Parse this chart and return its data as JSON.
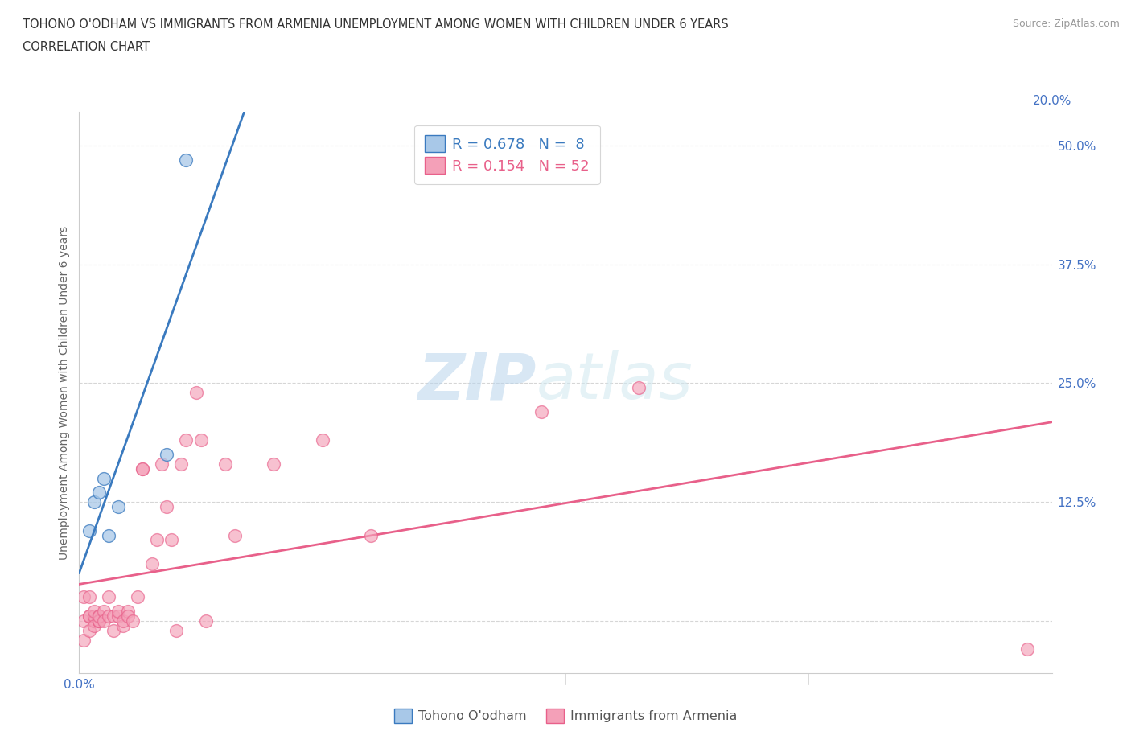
{
  "title_line1": "TOHONO O'ODHAM VS IMMIGRANTS FROM ARMENIA UNEMPLOYMENT AMONG WOMEN WITH CHILDREN UNDER 6 YEARS",
  "title_line2": "CORRELATION CHART",
  "source_text": "Source: ZipAtlas.com",
  "ylabel": "Unemployment Among Women with Children Under 6 years",
  "watermark": "ZIPatlas",
  "blue_R": 0.678,
  "blue_N": 8,
  "pink_R": 0.154,
  "pink_N": 52,
  "blue_color": "#a8c8e8",
  "pink_color": "#f4a0b8",
  "blue_line_color": "#3a7abf",
  "pink_line_color": "#e8608a",
  "xlim": [
    0.0,
    0.2
  ],
  "ylim": [
    -0.055,
    0.535
  ],
  "x_ticks": [
    0.0,
    0.05,
    0.1,
    0.15,
    0.2
  ],
  "y_ticks": [
    0.0,
    0.125,
    0.25,
    0.375,
    0.5
  ],
  "blue_x": [
    0.002,
    0.003,
    0.004,
    0.005,
    0.006,
    0.008,
    0.018,
    0.022
  ],
  "blue_y": [
    0.095,
    0.125,
    0.135,
    0.15,
    0.09,
    0.12,
    0.175,
    0.485
  ],
  "pink_x": [
    0.001,
    0.001,
    0.001,
    0.002,
    0.002,
    0.002,
    0.002,
    0.003,
    0.003,
    0.003,
    0.003,
    0.003,
    0.004,
    0.004,
    0.004,
    0.004,
    0.004,
    0.005,
    0.005,
    0.006,
    0.006,
    0.007,
    0.007,
    0.008,
    0.008,
    0.009,
    0.009,
    0.01,
    0.01,
    0.011,
    0.012,
    0.013,
    0.013,
    0.015,
    0.016,
    0.017,
    0.018,
    0.019,
    0.02,
    0.021,
    0.022,
    0.024,
    0.025,
    0.026,
    0.03,
    0.032,
    0.04,
    0.05,
    0.06,
    0.095,
    0.115,
    0.195
  ],
  "pink_y": [
    0.0,
    0.025,
    -0.02,
    0.005,
    -0.01,
    0.005,
    0.025,
    0.0,
    0.0,
    0.005,
    -0.005,
    0.01,
    0.0,
    0.005,
    0.0,
    0.0,
    0.005,
    0.01,
    0.0,
    0.005,
    0.025,
    0.005,
    -0.01,
    0.005,
    0.01,
    -0.005,
    0.0,
    0.01,
    0.005,
    0.0,
    0.025,
    0.16,
    0.16,
    0.06,
    0.085,
    0.165,
    0.12,
    0.085,
    -0.01,
    0.165,
    0.19,
    0.24,
    0.19,
    0.0,
    0.165,
    0.09,
    0.165,
    0.19,
    0.09,
    0.22,
    0.245,
    -0.03
  ]
}
